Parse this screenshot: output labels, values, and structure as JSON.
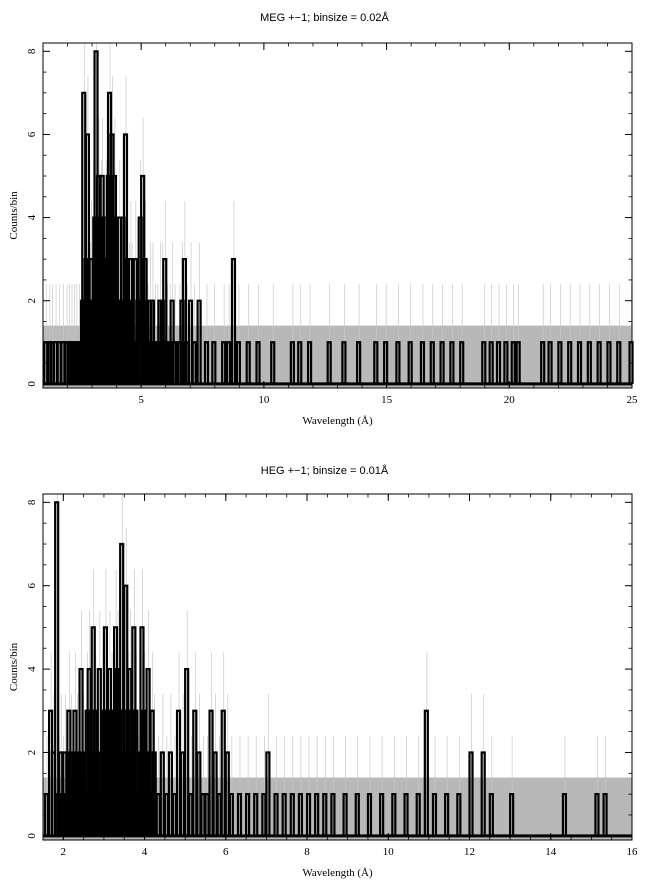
{
  "chart_data": [
    {
      "type": "line",
      "title": "MEG +−1; binsize = 0.02Å",
      "xlabel": "Wavelength (Å)",
      "ylabel": "Counts/bin",
      "xlim": [
        1.0,
        25.0
      ],
      "ylim": [
        -0.1,
        8.2
      ],
      "xticks": [
        5,
        10,
        15,
        20,
        25
      ],
      "xtick_labels": [
        "5",
        "10",
        "15",
        "20",
        "25"
      ],
      "yticks": [
        0,
        2,
        4,
        6,
        8
      ],
      "ytick_labels": [
        "0",
        "2",
        "4",
        "6",
        "8"
      ],
      "error_band_level": 1.4,
      "series": [
        {
          "style": "histogram",
          "x": [
            1.05,
            1.2,
            1.3,
            1.45,
            1.6,
            1.75,
            1.9,
            2.0,
            2.1,
            2.2,
            2.3,
            2.4,
            2.5,
            2.55,
            2.6,
            2.65,
            2.7,
            2.75,
            2.8,
            2.85,
            2.9,
            2.95,
            3.0,
            3.05,
            3.1,
            3.15,
            3.2,
            3.25,
            3.3,
            3.35,
            3.4,
            3.45,
            3.5,
            3.55,
            3.6,
            3.65,
            3.7,
            3.75,
            3.8,
            3.85,
            3.9,
            3.95,
            4.0,
            4.05,
            4.1,
            4.15,
            4.2,
            4.25,
            4.3,
            4.35,
            4.4,
            4.45,
            4.5,
            4.55,
            4.6,
            4.7,
            4.75,
            4.8,
            4.9,
            5.0,
            5.05,
            5.1,
            5.2,
            5.3,
            5.4,
            5.5,
            5.6,
            5.7,
            5.8,
            5.9,
            6.0,
            6.1,
            6.2,
            6.3,
            6.5,
            6.6,
            6.7,
            6.8,
            6.95,
            7.1,
            7.3,
            7.6,
            7.9,
            8.3,
            8.5,
            8.7,
            8.9,
            9.3,
            9.7,
            10.3,
            11.1,
            11.4,
            11.8,
            12.6,
            13.2,
            13.8,
            14.5,
            14.9,
            15.4,
            15.9,
            16.4,
            16.8,
            17.2,
            17.6,
            18.0,
            18.9,
            19.2,
            19.5,
            19.8,
            20.1,
            20.3,
            21.3,
            21.6,
            22.0,
            22.4,
            22.8,
            23.2,
            23.6,
            24.0,
            24.4,
            24.9
          ],
          "y": [
            1,
            1,
            1,
            1,
            1,
            1,
            1,
            1,
            1,
            1,
            1,
            1,
            1,
            2,
            7,
            2,
            3,
            6,
            1,
            2,
            3,
            2,
            1,
            4,
            8,
            3,
            5,
            2,
            4,
            5,
            3,
            2,
            4,
            1,
            5,
            7,
            3,
            6,
            4,
            5,
            3,
            2,
            2,
            4,
            1,
            2,
            4,
            1,
            6,
            3,
            1,
            2,
            3,
            2,
            1,
            3,
            1,
            2,
            4,
            5,
            2,
            3,
            1,
            2,
            2,
            1,
            1,
            2,
            2,
            3,
            1,
            1,
            2,
            1,
            1,
            2,
            3,
            1,
            2,
            1,
            2,
            1,
            1,
            1,
            1,
            3,
            1,
            1,
            1,
            1,
            1,
            1,
            1,
            1,
            1,
            1,
            1,
            1,
            1,
            1,
            1,
            1,
            1,
            1,
            1,
            1,
            1,
            1,
            1,
            1,
            1,
            1,
            1,
            1,
            1,
            1,
            1,
            1,
            1,
            1,
            1
          ]
        }
      ]
    },
    {
      "type": "line",
      "title": "HEG +−1; binsize = 0.01Å",
      "xlabel": "Wavelength (Å)",
      "ylabel": "Counts/bin",
      "xlim": [
        1.5,
        16.0
      ],
      "ylim": [
        -0.1,
        8.2
      ],
      "xticks": [
        2,
        4,
        6,
        8,
        10,
        12,
        14,
        16
      ],
      "xtick_labels": [
        "2",
        "4",
        "6",
        "8",
        "10",
        "12",
        "14",
        "16"
      ],
      "yticks": [
        0,
        2,
        4,
        6,
        8
      ],
      "ytick_labels": [
        "0",
        "2",
        "4",
        "6",
        "8"
      ],
      "error_band_level": 1.4,
      "series": [
        {
          "style": "histogram",
          "x": [
            1.55,
            1.65,
            1.72,
            1.8,
            1.85,
            1.9,
            1.95,
            2.0,
            2.05,
            2.1,
            2.15,
            2.2,
            2.25,
            2.3,
            2.35,
            2.4,
            2.45,
            2.5,
            2.55,
            2.6,
            2.65,
            2.7,
            2.75,
            2.8,
            2.85,
            2.9,
            2.95,
            3.0,
            3.05,
            3.1,
            3.15,
            3.2,
            3.25,
            3.3,
            3.35,
            3.4,
            3.45,
            3.5,
            3.55,
            3.6,
            3.65,
            3.7,
            3.75,
            3.8,
            3.85,
            3.9,
            3.95,
            4.0,
            4.05,
            4.1,
            4.15,
            4.2,
            4.3,
            4.4,
            4.5,
            4.6,
            4.7,
            4.8,
            4.9,
            5.0,
            5.1,
            5.2,
            5.3,
            5.4,
            5.5,
            5.6,
            5.7,
            5.8,
            5.9,
            6.0,
            6.1,
            6.3,
            6.5,
            6.7,
            6.9,
            7.0,
            7.2,
            7.4,
            7.6,
            7.8,
            8.0,
            8.2,
            8.4,
            8.6,
            8.9,
            9.2,
            9.5,
            9.8,
            10.1,
            10.4,
            10.7,
            10.9,
            11.1,
            11.4,
            11.7,
            12.0,
            12.3,
            12.5,
            13.0,
            14.3,
            15.1,
            15.3
          ],
          "y": [
            1,
            3,
            2,
            8,
            1,
            2,
            1,
            2,
            1,
            3,
            2,
            1,
            3,
            2,
            1,
            4,
            2,
            1,
            3,
            4,
            2,
            5,
            3,
            2,
            4,
            1,
            3,
            5,
            2,
            4,
            3,
            2,
            5,
            4,
            3,
            7,
            2,
            6,
            3,
            4,
            2,
            5,
            3,
            1,
            2,
            5,
            3,
            2,
            4,
            1,
            3,
            2,
            1,
            2,
            1,
            2,
            1,
            3,
            2,
            4,
            1,
            3,
            2,
            1,
            1,
            3,
            2,
            1,
            3,
            2,
            1,
            1,
            1,
            1,
            1,
            2,
            1,
            1,
            1,
            1,
            1,
            1,
            1,
            1,
            1,
            1,
            1,
            1,
            1,
            1,
            1,
            3,
            1,
            1,
            1,
            2,
            2,
            1,
            1,
            1,
            1,
            1
          ]
        }
      ]
    }
  ]
}
